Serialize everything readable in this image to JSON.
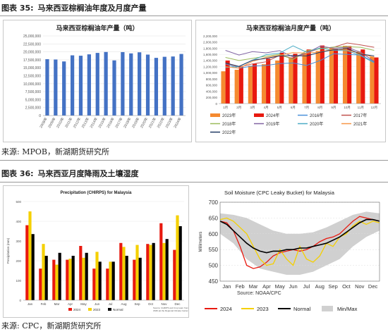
{
  "figure35": {
    "label": "图表 35:",
    "title": "马来西亚棕榈油年度及月度产量",
    "source": "来源: MPOB，新湖期货研究所"
  },
  "figure36": {
    "label": "图表 36:",
    "title": "马来西亚月度降雨及土壤湿度",
    "source": "来源: CPC，新湖期货研究所"
  },
  "colors": {
    "blue_bar": "#4472c4",
    "red": "#e8190f",
    "yellow": "#f5d000",
    "black": "#000000",
    "orange": "#f58a30"
  },
  "chart_data": [
    {
      "type": "bar",
      "title": "马来西亚棕榈油年产量（吨）",
      "categories": [
        "2008年",
        "2009年",
        "2010年",
        "2011年",
        "2012年",
        "2013年",
        "2014年",
        "2015年",
        "2016年",
        "2017年",
        "2018年",
        "2019年",
        "2020年",
        "2021年",
        "2022年",
        "2023年",
        "2024年"
      ],
      "values": [
        17700000,
        17600000,
        16990000,
        18910000,
        18790000,
        19220000,
        19670000,
        19960000,
        17320000,
        19920000,
        19520000,
        19860000,
        19140000,
        18120000,
        18450000,
        18550000,
        19340000
      ],
      "yticks": [
        "0",
        "2,500,000",
        "5,000,000",
        "7,500,000",
        "10,000,000",
        "12,500,000",
        "15,000,000",
        "17,500,000",
        "20,000,000",
        "22,500,000",
        "25,000,000"
      ],
      "ylim": [
        0,
        25000000
      ]
    },
    {
      "type": "bar+line",
      "title": "马来西亚棕榈油月度产量（吨）",
      "categories": [
        "1月",
        "2月",
        "3月",
        "4月",
        "5月",
        "6月",
        "7月",
        "8月",
        "9月",
        "10月",
        "11月",
        "12月"
      ],
      "yticks": [
        "0",
        "200,000",
        "400,000",
        "600,000",
        "800,000",
        "1,000,000",
        "1,200,000",
        "1,400,000",
        "1,600,000",
        "1,800,000",
        "2,000,000",
        "2,200,000"
      ],
      "ylim": [
        0,
        2200000
      ],
      "bar_series": [
        {
          "name": "2023年",
          "color": "#f58a30",
          "values": [
            1050000,
            1100000,
            1230000,
            1280000,
            1400000,
            1500000,
            1640000,
            1710000,
            1810000,
            1880000,
            1690000,
            1530000
          ]
        },
        {
          "name": "2024年",
          "color": "#e8190f",
          "values": [
            1400000,
            1200000,
            1300000,
            1460000,
            1650000,
            1620000,
            1760000,
            1890000,
            1780000,
            1870000,
            1760000,
            1500000
          ]
        }
      ],
      "line_series": [
        {
          "name": "2016年",
          "color": "#4a90d9",
          "values": [
            1290000,
            1150000,
            1220000,
            1240000,
            1300000,
            1320000,
            1240000,
            1400000,
            1620000,
            1600000,
            1580000,
            1350000
          ]
        },
        {
          "name": "2017年",
          "color": "#c0504d",
          "values": [
            1320000,
            1190000,
            1290000,
            1360000,
            1570000,
            1470000,
            1650000,
            1800000,
            1830000,
            1970000,
            1910000,
            1830000
          ]
        },
        {
          "name": "2018年",
          "color": "#9bbb59",
          "values": [
            1500000,
            1400000,
            1470000,
            1540000,
            1600000,
            1430000,
            1720000,
            1780000,
            1840000,
            1850000,
            1830000,
            1730000
          ]
        },
        {
          "name": "2019年",
          "color": "#8064a2",
          "values": [
            1730000,
            1580000,
            1690000,
            1650000,
            1720000,
            1520000,
            1640000,
            1870000,
            1800000,
            1830000,
            1670000,
            1370000
          ]
        },
        {
          "name": "2020年",
          "color": "#4bacc6",
          "values": [
            1170000,
            1210000,
            1410000,
            1590000,
            1640000,
            1880000,
            1670000,
            1810000,
            1730000,
            1720000,
            1560000,
            1330000
          ]
        },
        {
          "name": "2021年",
          "color": "#f79646",
          "values": [
            1200000,
            1150000,
            1370000,
            1500000,
            1570000,
            1660000,
            1640000,
            1680000,
            1770000,
            1740000,
            1630000,
            1500000
          ]
        },
        {
          "name": "2022年",
          "color": "#1f3864",
          "values": [
            1320000,
            1210000,
            1410000,
            1470000,
            1550000,
            1560000,
            1550000,
            1670000,
            1750000,
            1790000,
            1610000,
            1550000
          ]
        }
      ]
    },
    {
      "type": "bar",
      "title": "Precipitation (CHIRPS) for Malaysia",
      "ylabel": "Precipitation (mm)",
      "categories": [
        "Jan",
        "Feb",
        "Mar",
        "Apr",
        "May",
        "Jun",
        "Jul",
        "Aug",
        "Sep",
        "Oct",
        "Nov",
        "Dec"
      ],
      "yticks": [
        "0",
        "100",
        "200",
        "300",
        "400",
        "500"
      ],
      "ylim": [
        0,
        500
      ],
      "series": [
        {
          "name": "2024",
          "color": "#e8190f",
          "values": [
            380,
            160,
            205,
            205,
            275,
            160,
            160,
            290,
            205,
            285,
            390,
            255
          ]
        },
        {
          "name": "2023",
          "color": "#f5d000",
          "values": [
            450,
            285,
            180,
            210,
            215,
            245,
            195,
            270,
            280,
            280,
            290,
            430
          ]
        },
        {
          "name": "Normal",
          "color": "#000000",
          "values": [
            335,
            225,
            240,
            225,
            240,
            195,
            195,
            225,
            215,
            290,
            310,
            375
          ]
        }
      ],
      "footnote": "Source: CHIRPS and Crop team from UMD (at the Regional Climate Center NOAA)"
    },
    {
      "type": "line",
      "title": "Soil Moisture (CPC Leaky Bucket) for Malaysia",
      "ylabel": "Millimeters",
      "source": "Source: NOAA/CPC",
      "xticks": [
        "Jan",
        "Feb",
        "Mar",
        "Apr",
        "May",
        "Jun",
        "Jul",
        "Aug",
        "Sep",
        "Oct",
        "Nov",
        "Dec"
      ],
      "yticks": [
        "450",
        "500",
        "550",
        "600",
        "650",
        "700"
      ],
      "ylim": [
        450,
        700
      ],
      "series": [
        {
          "name": "2024",
          "color": "#e8190f",
          "x": [
            0,
            0.5,
            1,
            1.5,
            2,
            2.5,
            3,
            3.5,
            4,
            4.5,
            5,
            5.5,
            6,
            6.5,
            7,
            7.5,
            8,
            8.5,
            9,
            9.5,
            10,
            10.5,
            11,
            11.5,
            12
          ],
          "y": [
            640,
            635,
            610,
            560,
            500,
            490,
            495,
            510,
            530,
            540,
            545,
            550,
            545,
            550,
            560,
            575,
            585,
            590,
            600,
            620,
            640,
            655,
            650,
            645,
            640
          ]
        },
        {
          "name": "2023",
          "color": "#f5d000",
          "x": [
            0,
            0.5,
            1,
            1.5,
            2,
            2.5,
            3,
            3.5,
            4,
            4.5,
            5,
            5.5,
            6,
            6.5,
            7,
            7.5,
            8,
            8.5,
            9,
            9.5,
            10,
            10.5,
            11,
            11.5,
            12
          ],
          "y": [
            645,
            650,
            640,
            620,
            600,
            560,
            520,
            500,
            505,
            550,
            520,
            500,
            560,
            520,
            510,
            530,
            570,
            560,
            590,
            600,
            625,
            640,
            630,
            640,
            635
          ]
        },
        {
          "name": "Normal",
          "color": "#000000",
          "x": [
            0,
            0.5,
            1,
            1.5,
            2,
            2.5,
            3,
            3.5,
            4,
            4.5,
            5,
            5.5,
            6,
            6.5,
            7,
            7.5,
            8,
            8.5,
            9,
            9.5,
            10,
            10.5,
            11,
            11.5,
            12
          ],
          "y": [
            640,
            630,
            610,
            590,
            570,
            555,
            545,
            540,
            545,
            545,
            550,
            550,
            555,
            555,
            560,
            565,
            570,
            580,
            590,
            605,
            620,
            635,
            645,
            645,
            640
          ]
        }
      ],
      "band": {
        "name": "Min/Max",
        "color": "#d0d0d0",
        "x": [
          0,
          1,
          2,
          3,
          4,
          5,
          6,
          7,
          8,
          9,
          10,
          11,
          12
        ],
        "min": [
          600,
          570,
          520,
          490,
          480,
          470,
          470,
          480,
          500,
          520,
          560,
          590,
          610
        ],
        "max": [
          665,
          660,
          650,
          630,
          610,
          600,
          600,
          605,
          620,
          640,
          660,
          670,
          665
        ]
      }
    }
  ]
}
